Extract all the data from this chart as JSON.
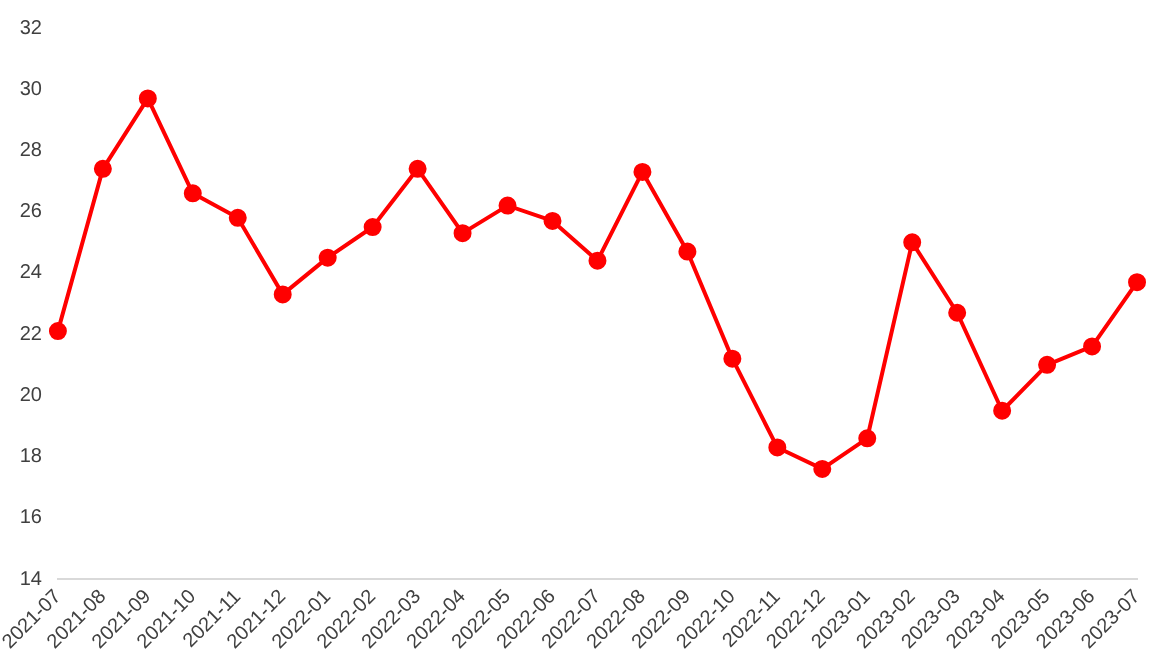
{
  "chart_data": {
    "type": "line",
    "categories": [
      "2021-07",
      "2021-08",
      "2021-09",
      "2021-10",
      "2021-11",
      "2021-12",
      "2022-01",
      "2022-02",
      "2022-03",
      "2022-04",
      "2022-05",
      "2022-06",
      "2022-07",
      "2022-08",
      "2022-09",
      "2022-10",
      "2022-11",
      "2022-12",
      "2023-01",
      "2023-02",
      "2023-03",
      "2023-04",
      "2023-05",
      "2023-06",
      "2023-07"
    ],
    "series": [
      {
        "color": "#ff0000",
        "values": [
          22.1,
          27.4,
          29.7,
          26.6,
          25.8,
          23.3,
          24.5,
          25.5,
          27.4,
          25.3,
          26.2,
          25.7,
          24.4,
          27.3,
          24.7,
          21.2,
          18.3,
          17.6,
          18.6,
          25.0,
          22.7,
          19.5,
          21.0,
          21.6,
          23.7
        ]
      }
    ],
    "ylim": [
      14,
      32
    ],
    "yticks": [
      14,
      16,
      18,
      20,
      22,
      24,
      26,
      28,
      30,
      32
    ],
    "grid": false,
    "legend": false,
    "marker": "circle",
    "line_style": "solid"
  }
}
